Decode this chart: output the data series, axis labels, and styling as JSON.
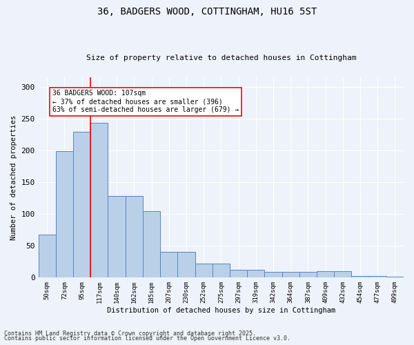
{
  "title1": "36, BADGERS WOOD, COTTINGHAM, HU16 5ST",
  "title2": "Size of property relative to detached houses in Cottingham",
  "xlabel": "Distribution of detached houses by size in Cottingham",
  "ylabel": "Number of detached properties",
  "categories": [
    "50sqm",
    "72sqm",
    "95sqm",
    "117sqm",
    "140sqm",
    "162sqm",
    "185sqm",
    "207sqm",
    "230sqm",
    "252sqm",
    "275sqm",
    "297sqm",
    "319sqm",
    "342sqm",
    "364sqm",
    "387sqm",
    "409sqm",
    "432sqm",
    "454sqm",
    "477sqm",
    "499sqm"
  ],
  "values": [
    68,
    199,
    229,
    243,
    128,
    128,
    104,
    40,
    40,
    22,
    22,
    12,
    12,
    9,
    9,
    9,
    10,
    10,
    3,
    3,
    1
  ],
  "bar_color": "#bad0e8",
  "bar_edge_color": "#5585c0",
  "vline_x": 2.5,
  "vline_color": "red",
  "annotation_text": "36 BADGERS WOOD: 107sqm\n← 37% of detached houses are smaller (396)\n63% of semi-detached houses are larger (679) →",
  "annotation_box_color": "white",
  "annotation_box_edge": "red",
  "bg_color": "#eef2fb",
  "grid_color": "white",
  "footer1": "Contains HM Land Registry data © Crown copyright and database right 2025.",
  "footer2": "Contains public sector information licensed under the Open Government Licence v3.0.",
  "ylim": [
    0,
    315
  ],
  "yticks": [
    0,
    50,
    100,
    150,
    200,
    250,
    300
  ]
}
